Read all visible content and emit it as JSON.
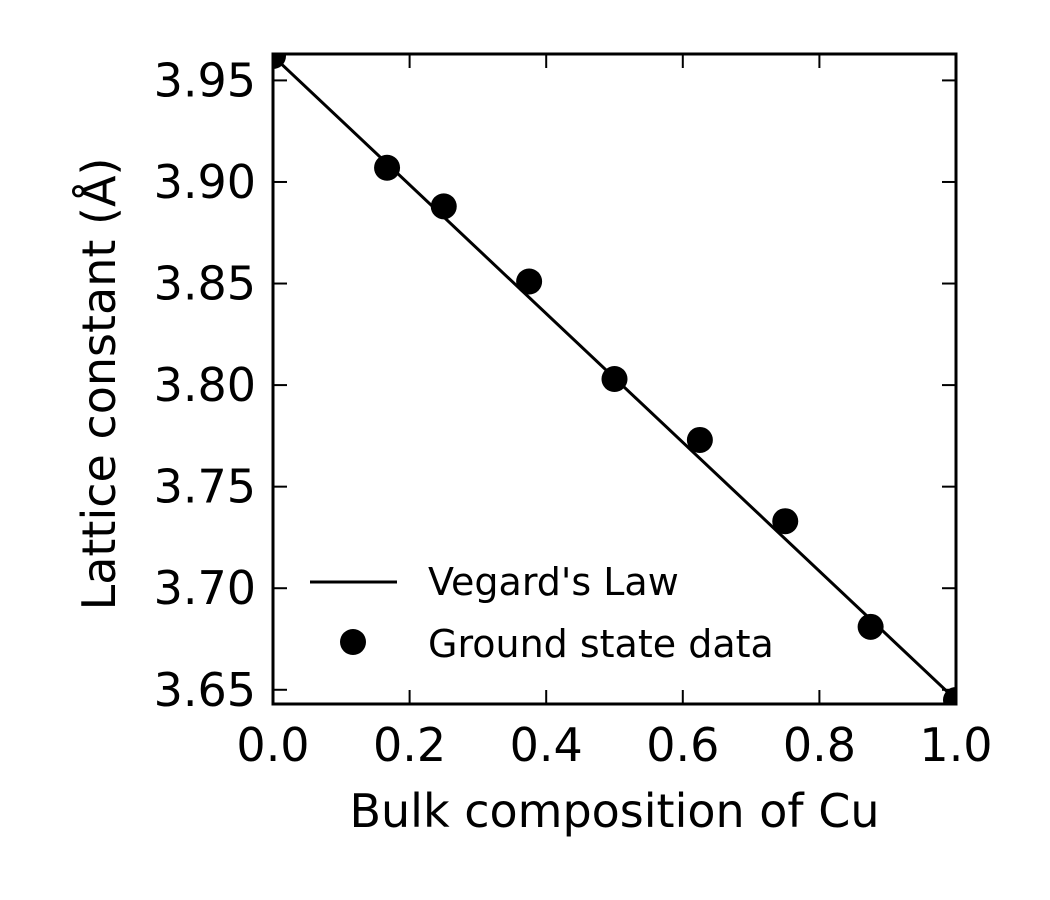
{
  "chart_data": {
    "type": "scatter",
    "xlabel": "Bulk composition of Cu",
    "ylabel": "Lattice constant (Å)",
    "xlim": [
      0.0,
      1.0
    ],
    "ylim": [
      3.643,
      3.963
    ],
    "xticks": [
      "0.0",
      "0.2",
      "0.4",
      "0.6",
      "0.8",
      "1.0"
    ],
    "yticks": [
      "3.65",
      "3.70",
      "3.75",
      "3.80",
      "3.85",
      "3.90",
      "3.95"
    ],
    "grid": false,
    "legend_position": "lower-left",
    "series": [
      {
        "name": "Vegard's Law",
        "type": "line",
        "color": "#000000",
        "x": [
          0.0,
          1.0
        ],
        "y": [
          3.962,
          3.645
        ]
      },
      {
        "name": "Ground state data",
        "type": "scatter",
        "color": "#000000",
        "x": [
          0.0,
          0.167,
          0.25,
          0.375,
          0.5,
          0.625,
          0.75,
          0.875,
          1.0
        ],
        "y": [
          3.962,
          3.907,
          3.888,
          3.851,
          3.803,
          3.773,
          3.733,
          3.681,
          3.645
        ]
      }
    ]
  }
}
